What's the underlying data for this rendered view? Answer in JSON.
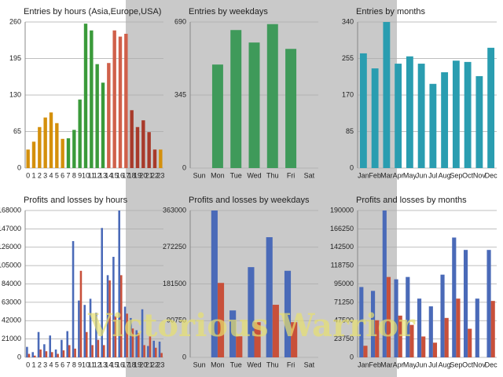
{
  "chart_data": [
    {
      "type": "bar",
      "title": "Entries by hours (Asia,Europe,USA)",
      "categories": [
        "0",
        "1",
        "2",
        "3",
        "4",
        "5",
        "6",
        "7",
        "8",
        "9",
        "10",
        "11",
        "12",
        "13",
        "14",
        "15",
        "16",
        "17",
        "18",
        "19",
        "20",
        "21",
        "22",
        "23"
      ],
      "values": [
        33,
        47,
        73,
        90,
        99,
        80,
        52,
        53,
        68,
        122,
        257,
        245,
        185,
        152,
        187,
        245,
        234,
        239,
        103,
        73,
        85,
        64,
        33,
        33
      ],
      "colors": [
        "#d4900c",
        "#d4900c",
        "#d4900c",
        "#d4900c",
        "#d4900c",
        "#d4900c",
        "#d4900c",
        "#3a9a3a",
        "#3a9a3a",
        "#3a9a3a",
        "#3a9a3a",
        "#3a9a3a",
        "#3a9a3a",
        "#3a9a3a",
        "#d0604a",
        "#d0604a",
        "#d0604a",
        "#d0604a",
        "#a83a2a",
        "#a83a2a",
        "#a83a2a",
        "#a83a2a",
        "#a83a2a",
        "#d4900c"
      ],
      "ylim": [
        0,
        260
      ],
      "yticks": [
        0,
        65,
        130,
        195,
        260
      ],
      "grid": true
    },
    {
      "type": "bar",
      "title": "Entries by weekdays",
      "categories": [
        "Sun",
        "Mon",
        "Tue",
        "Wed",
        "Thu",
        "Fri",
        "Sat"
      ],
      "values": [
        0,
        489,
        652,
        593,
        680,
        563,
        0
      ],
      "color": "#3f9a5a",
      "ylim": [
        0,
        690
      ],
      "yticks": [
        0,
        345,
        690
      ],
      "grid": true
    },
    {
      "type": "bar",
      "title": "Entries by months",
      "categories": [
        "Jan",
        "Feb",
        "Mar",
        "Apr",
        "May",
        "Jun",
        "Jul",
        "Aug",
        "Sep",
        "Oct",
        "Nov",
        "Dec"
      ],
      "values": [
        267,
        232,
        340,
        243,
        260,
        243,
        196,
        223,
        250,
        247,
        214,
        280
      ],
      "color": "#2a9db0",
      "ylim": [
        0,
        340
      ],
      "yticks": [
        0,
        85,
        170,
        255,
        340
      ],
      "grid": true
    },
    {
      "type": "bar",
      "title": "Profits and losses by hours",
      "categories": [
        "0",
        "1",
        "2",
        "3",
        "4",
        "5",
        "6",
        "7",
        "8",
        "9",
        "10",
        "11",
        "12",
        "13",
        "14",
        "15",
        "16",
        "17",
        "18",
        "19",
        "20",
        "21",
        "22",
        "23"
      ],
      "series": [
        {
          "color": "#4a6ab8",
          "values": [
            12000,
            6000,
            29000,
            15000,
            25000,
            9000,
            20000,
            30000,
            133000,
            65000,
            60000,
            67000,
            51000,
            148000,
            94000,
            115000,
            168000,
            58000,
            45000,
            31000,
            55000,
            13000,
            19000,
            18000
          ]
        },
        {
          "color": "#c8503a",
          "values": [
            4000,
            2000,
            9000,
            7000,
            6000,
            4000,
            8000,
            14000,
            10000,
            99000,
            29000,
            14000,
            20000,
            14000,
            88000,
            47000,
            94000,
            50000,
            33000,
            28000,
            14000,
            24000,
            11000,
            5000
          ]
        }
      ],
      "ylim": [
        0,
        168000
      ],
      "yticks": [
        0,
        21000,
        42000,
        63000,
        84000,
        105000,
        126000,
        147000,
        168000
      ],
      "grid": true
    },
    {
      "type": "bar",
      "title": "Profits and losses by weekdays",
      "categories": [
        "Sun",
        "Mon",
        "Tue",
        "Wed",
        "Thu",
        "Fri",
        "Sat"
      ],
      "series": [
        {
          "color": "#4a6ab8",
          "values": [
            0,
            363000,
            116000,
            223000,
            297000,
            214000,
            0
          ]
        },
        {
          "color": "#c8503a",
          "values": [
            0,
            184000,
            52000,
            87000,
            130000,
            87000,
            0
          ]
        }
      ],
      "ylim": [
        0,
        363000
      ],
      "yticks": [
        0,
        90750,
        181500,
        272250,
        363000
      ],
      "grid": true
    },
    {
      "type": "bar",
      "title": "Profits and losses by months",
      "categories": [
        "Jan",
        "Feb",
        "Mar",
        "Apr",
        "May",
        "Jun",
        "Jul",
        "Aug",
        "Sep",
        "Oct",
        "Nov",
        "Dec"
      ],
      "series": [
        {
          "color": "#4a6ab8",
          "values": [
            91000,
            86000,
            190000,
            101000,
            104000,
            76000,
            66000,
            107000,
            155000,
            139000,
            76000,
            139000
          ]
        },
        {
          "color": "#c8503a",
          "values": [
            15000,
            48000,
            104000,
            54000,
            42000,
            27000,
            19000,
            51000,
            76000,
            37000,
            0,
            73000
          ]
        }
      ],
      "ylim": [
        0,
        190000
      ],
      "yticks": [
        0,
        23750,
        47500,
        71250,
        95000,
        118750,
        142500,
        166250,
        190000
      ],
      "grid": true
    }
  ],
  "watermark": "Victorious Warrior"
}
